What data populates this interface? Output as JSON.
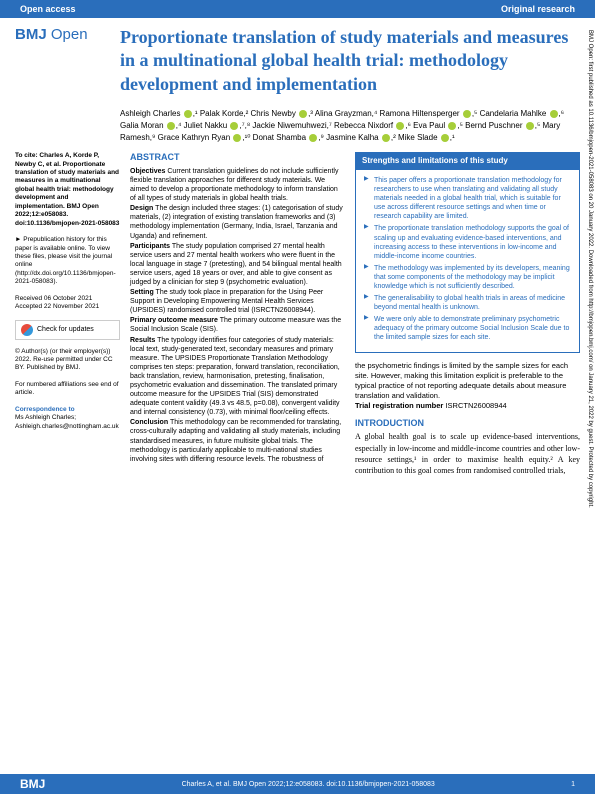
{
  "header": {
    "open_access": "Open access",
    "research_type": "Original research"
  },
  "journal": {
    "name_bold": "BMJ",
    "name_light": "Open"
  },
  "title": "Proportionate translation of study materials and measures in a multinational global health trial: methodology development and implementation",
  "authors_html": "Ashleigh Charles ●,¹ Palak Korde,² Chris Newby ●,³ Alina Grayzman,⁴ Ramona Hiltensperger ●,⁵ Candelaria Mahlke ●,⁶ Galia Moran ●,⁴ Juliet Nakku ●,⁷,⁸ Jackie Niwemuhwezi,⁷ Rebecca Nixdorf ●,⁶ Eva Paul ●,⁵ Bernd Puschner ●,⁵ Mary Ramesh,⁹ Grace Kathryn Ryan ●,¹⁰ Donat Shamba ●,⁹ Jasmine Kalha ●,² Mike Slade ●,¹",
  "sidebar": {
    "citation": "To cite: Charles A, Korde P, Newby C, et al. Proportionate translation of study materials and measures in a multinational global health trial: methodology development and implementation. BMJ Open 2022;12:e058083. doi:10.1136/bmjopen-2021-058083",
    "prepub": "► Prepublication history for this paper is available online. To view these files, please visit the journal online (http://dx.doi.org/10.1136/bmjopen-2021-058083).",
    "received": "Received 06 October 2021",
    "accepted": "Accepted 22 November 2021",
    "check_updates": "Check for updates",
    "copyright": "© Author(s) (or their employer(s)) 2022. Re-use permitted under CC BY. Published by BMJ.",
    "affiliations_note": "For numbered affiliations see end of article.",
    "correspondence_head": "Correspondence to",
    "correspondence": "Ms Ashleigh Charles; Ashleigh.charles@nottingham.ac.uk"
  },
  "abstract": {
    "heading": "ABSTRACT",
    "objectives_label": "Objectives",
    "objectives": " Current translation guidelines do not include sufficiently flexible translation approaches for different study materials. We aimed to develop a proportionate methodology to inform translation of all types of study materials in global health trials.",
    "design_label": "Design",
    "design": " The design included three stages: (1) categorisation of study materials, (2) integration of existing translation frameworks and (3) methodology implementation (Germany, India, Israel, Tanzania and Uganda) and refinement.",
    "participants_label": "Participants",
    "participants": " The study population comprised 27 mental health service users and 27 mental health workers who were fluent in the local language in stage 7 (pretesting), and 54 bilingual mental health service users, aged 18 years or over, and able to give consent as judged by a clinician for step 9 (psychometric evaluation).",
    "setting_label": "Setting",
    "setting": " The study took place in preparation for the Using Peer Support in Developing Empowering Mental Health Services (UPSIDES) randomised controlled trial (ISRCTN26008944).",
    "primary_label": "Primary outcome measure",
    "primary": " The primary outcome measure was the Social Inclusion Scale (SIS).",
    "results_label": "Results",
    "results": " The typology identifies four categories of study materials: local text, study-generated text, secondary measures and primary measure. The UPSIDES Proportionate Translation Methodology comprises ten steps: preparation, forward translation, reconciliation, back translation, review, harmonisation, pretesting, finalisation, psychometric evaluation and dissemination. The translated primary outcome measure for the UPSIDES Trial (SIS) demonstrated adequate content validity (49.3 vs 48.5, p=0.08), convergent validity and internal consistency (0.73), with minimal floor/ceiling effects.",
    "conclusion_label": "Conclusion",
    "conclusion": " This methodology can be recommended for translating, cross-culturally adapting and validating all study materials, including standardised measures, in future multisite global trials. The methodology is particularly applicable to multi-national studies involving sites with differing resource levels. The robustness of"
  },
  "strengths": {
    "heading": "Strengths and limitations of this study",
    "items": [
      "This paper offers a proportionate translation methodology for researchers to use when translating and validating all study materials needed in a global health trial, which is suitable for use across different resource settings and when time or research capability are limited.",
      "The proportionate translation methodology supports the goal of scaling up and evaluating evidence-based interventions, and increasing access to these interventions in low-income and middle-income income countries.",
      "The methodology was implemented by its developers, meaning that some components of the methodology may be implicit knowledge which is not sufficiently described.",
      "The generalisability to global health trials in areas of medicine beyond mental health is unknown.",
      "We were only able to demonstrate preliminary psychometric adequacy of the primary outcome Social Inclusion Scale due to the limited sample sizes for each site."
    ]
  },
  "right_tail": {
    "text": "the psychometric findings is limited by the sample sizes for each site. However, making this limitation explicit is preferable to the typical practice of not reporting adequate details about measure translation and validation.",
    "trial_label": "Trial registration number",
    "trial_value": " ISRCTN26008944"
  },
  "intro": {
    "heading": "INTRODUCTION",
    "text": "A global health goal is to scale up evidence-based interventions, especially in low-income and middle-income countries and other low-resource settings,¹ in order to maximise health equity.² A key contribution to this goal comes from randomised controlled trials,"
  },
  "footer": {
    "logo": "BMJ",
    "citation": "Charles A, et al. BMJ Open 2022;12:e058083. doi:10.1136/bmjopen-2021-058083",
    "page": "1"
  },
  "vertical": "BMJ Open: first published as 10.1136/bmjopen-2021-058083 on 20 January 2022. Downloaded from http://bmjopen.bmj.com/ on January 21, 2022 by guest. Protected by copyright."
}
